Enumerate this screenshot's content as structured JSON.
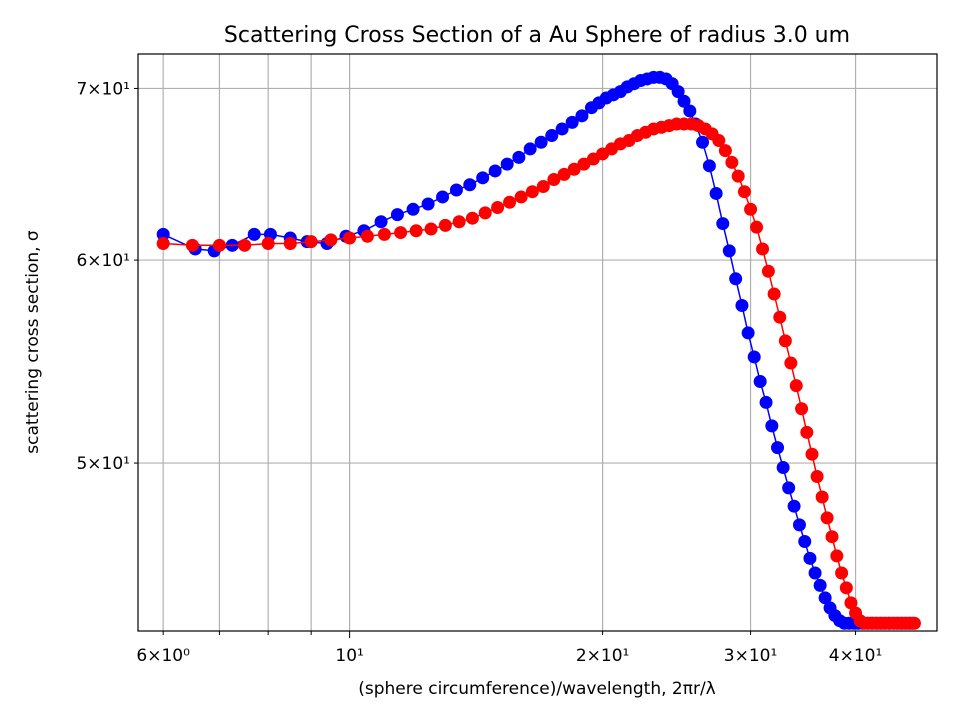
{
  "chart_data": {
    "type": "scatter",
    "title": "Scattering Cross Section of a Au Sphere of radius 3.0 um",
    "xlabel": "(sphere circumference)/wavelength, 2πr/λ",
    "ylabel": "scattering cross section, σ",
    "xscale": "log",
    "yscale": "log",
    "xlim": [
      5.6,
      50.0
    ],
    "ylim": [
      43.0,
      72.2
    ],
    "grid": true,
    "xticks_major": [
      {
        "value": 10,
        "label": "10¹"
      }
    ],
    "xticks_minor": [
      {
        "value": 6,
        "label": "6×10⁰"
      },
      {
        "value": 7,
        "label": ""
      },
      {
        "value": 8,
        "label": ""
      },
      {
        "value": 9,
        "label": ""
      },
      {
        "value": 20,
        "label": "2×10¹"
      },
      {
        "value": 30,
        "label": "3×10¹"
      },
      {
        "value": 40,
        "label": "4×10¹"
      }
    ],
    "yticks": [
      {
        "value": 50,
        "label": "5×10¹"
      },
      {
        "value": 60,
        "label": "6×10¹"
      },
      {
        "value": 70,
        "label": "7×10¹"
      }
    ],
    "series": [
      {
        "color": "#0000ff",
        "x": [
          6.0,
          6.55,
          6.9,
          7.25,
          7.7,
          8.05,
          8.5,
          8.9,
          9.4,
          9.9,
          10.4,
          10.9,
          11.4,
          11.9,
          12.4,
          12.9,
          13.4,
          13.9,
          14.4,
          14.9,
          15.4,
          15.9,
          16.4,
          16.9,
          17.4,
          17.9,
          18.4,
          18.9,
          19.4,
          19.8,
          20.2,
          20.6,
          21.0,
          21.4,
          21.8,
          22.2,
          22.6,
          23.0,
          23.4,
          23.8,
          24.2,
          24.6,
          25.0,
          25.4,
          25.8,
          26.3,
          26.8,
          27.3,
          27.8,
          28.3,
          28.8,
          29.3,
          29.8,
          30.3,
          30.8,
          31.3,
          31.8,
          32.3,
          32.8,
          33.3,
          33.8,
          34.3,
          34.8,
          35.3,
          35.8,
          36.3,
          36.8,
          37.3,
          37.8,
          38.3,
          38.8,
          39.3,
          39.8,
          40.3,
          40.8,
          41.3,
          41.8,
          42.3,
          42.8,
          43.3,
          43.8,
          44.3,
          44.8,
          45.3,
          45.8,
          46.3,
          46.8
        ],
        "y": [
          61.4,
          60.6,
          60.5,
          60.8,
          61.4,
          61.4,
          61.2,
          61.0,
          60.9,
          61.3,
          61.6,
          62.1,
          62.5,
          62.8,
          63.1,
          63.5,
          63.9,
          64.2,
          64.6,
          65.0,
          65.4,
          65.8,
          66.3,
          66.7,
          67.1,
          67.5,
          67.9,
          68.3,
          68.8,
          69.1,
          69.4,
          69.6,
          69.8,
          70.1,
          70.3,
          70.5,
          70.6,
          70.7,
          70.7,
          70.6,
          70.3,
          69.8,
          69.2,
          68.6,
          67.8,
          66.7,
          65.3,
          63.7,
          62.0,
          60.5,
          59.0,
          57.6,
          56.2,
          55.0,
          53.8,
          52.8,
          51.7,
          50.7,
          49.8,
          48.9,
          48.1,
          47.3,
          46.6,
          45.9,
          45.3,
          44.8,
          44.3,
          43.9,
          43.6,
          43.4,
          43.3,
          43.3,
          43.3,
          43.3,
          43.3,
          43.3,
          43.3,
          43.3,
          43.3,
          43.3,
          43.3,
          43.3,
          43.3,
          43.3,
          43.3,
          43.3,
          43.3
        ]
      },
      {
        "color": "#ff0000",
        "x": [
          6.0,
          6.5,
          7.0,
          7.5,
          8.0,
          8.5,
          9.0,
          9.5,
          10.0,
          10.5,
          11.0,
          11.5,
          12.0,
          12.5,
          13.0,
          13.5,
          14.0,
          14.5,
          15.0,
          15.5,
          16.0,
          16.5,
          17.0,
          17.5,
          18.0,
          18.5,
          19.0,
          19.5,
          20.0,
          20.5,
          21.0,
          21.5,
          22.0,
          22.5,
          23.0,
          23.5,
          24.0,
          24.5,
          25.0,
          25.5,
          26.0,
          26.5,
          27.0,
          27.5,
          28.0,
          28.5,
          29.0,
          29.5,
          30.0,
          30.5,
          31.0,
          31.5,
          32.0,
          32.5,
          33.0,
          33.5,
          34.0,
          34.5,
          35.0,
          35.5,
          36.0,
          36.5,
          37.0,
          37.5,
          38.0,
          38.5,
          39.0,
          39.5,
          40.0,
          40.5,
          41.0,
          41.5,
          42.0,
          42.5,
          43.0,
          43.5,
          44.0,
          44.5,
          45.0,
          45.5,
          46.0,
          46.5,
          47.0
        ],
        "y": [
          60.9,
          60.8,
          60.8,
          60.8,
          60.9,
          60.9,
          61.0,
          61.1,
          61.2,
          61.3,
          61.4,
          61.5,
          61.6,
          61.7,
          61.9,
          62.1,
          62.3,
          62.6,
          62.9,
          63.2,
          63.5,
          63.8,
          64.1,
          64.5,
          64.8,
          65.1,
          65.4,
          65.7,
          66.0,
          66.3,
          66.6,
          66.8,
          67.1,
          67.3,
          67.5,
          67.6,
          67.7,
          67.8,
          67.8,
          67.8,
          67.7,
          67.5,
          67.2,
          66.8,
          66.2,
          65.5,
          64.7,
          63.8,
          62.8,
          61.8,
          60.6,
          59.4,
          58.2,
          57.0,
          55.8,
          54.7,
          53.6,
          52.5,
          51.4,
          50.4,
          49.4,
          48.5,
          47.6,
          46.8,
          46.0,
          45.3,
          44.7,
          44.1,
          43.7,
          43.4,
          43.3,
          43.3,
          43.3,
          43.3,
          43.3,
          43.3,
          43.3,
          43.3,
          43.3,
          43.3,
          43.3,
          43.3,
          43.3
        ]
      }
    ]
  }
}
